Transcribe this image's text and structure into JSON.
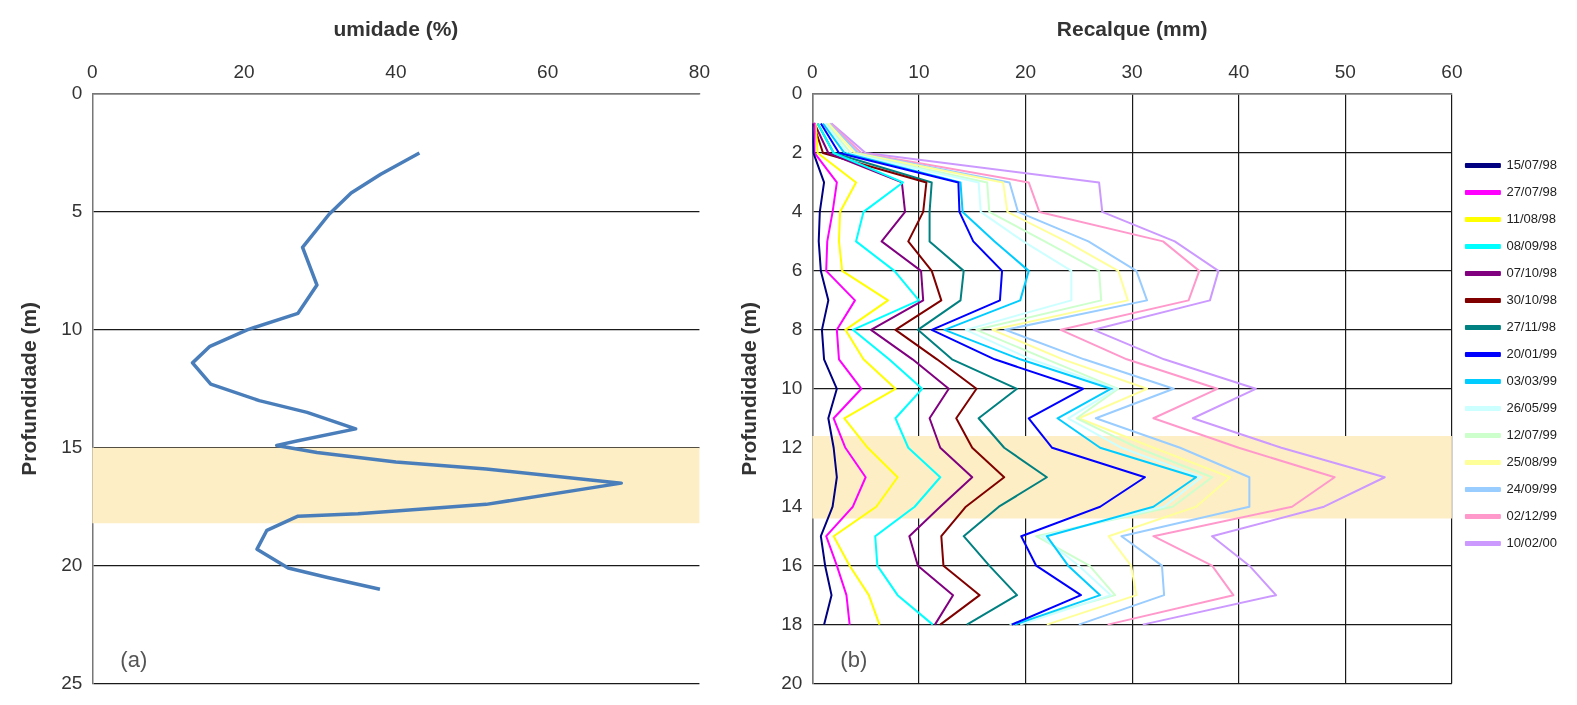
{
  "chart_data": [
    {
      "type": "line",
      "xlabel": "umidade (%)",
      "ylabel": "Profundidade (m)",
      "xlim": [
        0,
        80
      ],
      "xticks": [
        0,
        20,
        40,
        60,
        80
      ],
      "ylim": [
        25,
        0
      ],
      "yticks": [
        0,
        5,
        10,
        15,
        20,
        25
      ],
      "grid": "y",
      "legend": false,
      "marker": "none",
      "line_style": "solid",
      "annotations": [
        "(a)"
      ],
      "bands": [
        {
          "axis": "y",
          "from": 15,
          "to": 18.2,
          "color": "#fdeec5"
        }
      ],
      "series": [
        {
          "color": "#4a7ebb",
          "x": [
            43.1,
            38,
            34.1,
            31.2,
            27.7,
            29.6,
            27.1,
            20.4,
            15.5,
            13.2,
            15.6,
            22,
            28.3,
            34.7,
            27.1,
            24.3,
            29.6,
            40,
            51.9,
            69.7,
            51.9,
            35,
            27.1,
            23,
            21.7,
            25.8,
            31,
            37.9
          ],
          "values": [
            2.5,
            3.4,
            4.2,
            5.1,
            6.5,
            8.1,
            9.3,
            10,
            10.7,
            11.4,
            12.3,
            13,
            13.5,
            14.2,
            14.7,
            14.9,
            15.2,
            15.6,
            15.9,
            16.5,
            17.4,
            17.8,
            17.9,
            18.5,
            19.3,
            20.1,
            20.5,
            21
          ]
        }
      ]
    },
    {
      "type": "line",
      "xlabel": "Recalque (mm)",
      "ylabel": "Profundidade (m)",
      "xlim": [
        0,
        60
      ],
      "xticks": [
        0,
        10,
        20,
        30,
        40,
        50,
        60
      ],
      "ylim": [
        20,
        0
      ],
      "yticks": [
        0,
        2,
        4,
        6,
        8,
        10,
        12,
        14,
        16,
        18,
        20
      ],
      "grid": true,
      "legend": "right",
      "marker": "none",
      "line_style": "solid",
      "annotations": [
        "(b)"
      ],
      "bands": [
        {
          "axis": "y",
          "from": 11.6,
          "to": 14.4,
          "color": "#fdeec5"
        }
      ],
      "series": [
        {
          "name": "15/07/98",
          "color": "#000080",
          "x": [
            0,
            0.1,
            1.1,
            0.7,
            0.6,
            0.8,
            1.5,
            0.9,
            1.1,
            2.3,
            1.5,
            2.0,
            2.3,
            1.9,
            0.8,
            1.2,
            1.8,
            1.1
          ],
          "values": [
            1,
            2,
            3,
            4,
            5,
            6,
            7,
            8,
            9,
            10,
            11,
            12,
            13,
            14,
            15,
            16,
            17,
            18
          ]
        },
        {
          "name": "27/07/98",
          "color": "#ff00ff",
          "x": [
            0.2,
            0.2,
            2.3,
            1.9,
            1.4,
            1.3,
            4.0,
            2.3,
            2.5,
            4.6,
            2.0,
            3.1,
            5.0,
            3.8,
            1.3,
            2.3,
            3.2,
            3.5
          ],
          "values": [
            1,
            2,
            3,
            4,
            5,
            6,
            7,
            8,
            9,
            10,
            11,
            12,
            13,
            14,
            15,
            16,
            17,
            18
          ]
        },
        {
          "name": "11/08/98",
          "color": "#ffff00",
          "x": [
            0.3,
            0.5,
            4.1,
            2.6,
            2.5,
            2.8,
            7.1,
            3.1,
            4.8,
            7.8,
            3.0,
            5.2,
            8.0,
            6.0,
            2.0,
            3.5,
            5.3,
            6.3
          ],
          "values": [
            1,
            2,
            3,
            4,
            5,
            6,
            7,
            8,
            9,
            10,
            11,
            12,
            13,
            14,
            15,
            16,
            17,
            18
          ]
        },
        {
          "name": "08/09/98",
          "color": "#00ffff",
          "x": [
            0.5,
            2.0,
            8.5,
            4.8,
            4.1,
            7.7,
            10.0,
            3.8,
            7.2,
            10.3,
            7.8,
            9.0,
            12.0,
            9.6,
            5.9,
            6.1,
            8.0,
            11.3
          ],
          "values": [
            1,
            2,
            3,
            4,
            5,
            6,
            7,
            8,
            9,
            10,
            11,
            12,
            13,
            14,
            15,
            16,
            17,
            18
          ]
        },
        {
          "name": "07/10/98",
          "color": "#800080",
          "x": [
            0.2,
            1.5,
            8.4,
            8.7,
            6.5,
            10.2,
            10.4,
            5.5,
            9.4,
            12.8,
            11.0,
            12.0,
            15.0,
            12.0,
            9.1,
            9.9,
            13.2,
            11.5
          ],
          "values": [
            1,
            2,
            3,
            4,
            5,
            6,
            7,
            8,
            9,
            10,
            11,
            12,
            13,
            14,
            15,
            16,
            17,
            18
          ]
        },
        {
          "name": "30/10/98",
          "color": "#800000",
          "x": [
            0.1,
            1.0,
            10.7,
            10.4,
            9.0,
            11.2,
            12.1,
            7.8,
            11.7,
            15.4,
            13.5,
            15.0,
            18.0,
            14.4,
            12.1,
            12.3,
            15.7,
            12.0
          ],
          "values": [
            1,
            2,
            3,
            4,
            5,
            6,
            7,
            8,
            9,
            10,
            11,
            12,
            13,
            14,
            15,
            16,
            17,
            18
          ]
        },
        {
          "name": "27/11/98",
          "color": "#008080",
          "x": [
            0.5,
            2.0,
            11.2,
            11.0,
            11.0,
            14.2,
            13.9,
            9.9,
            13.1,
            19.2,
            15.6,
            18.0,
            22.0,
            17.5,
            14.2,
            16.6,
            19.2,
            14.5
          ],
          "values": [
            1,
            2,
            3,
            4,
            5,
            6,
            7,
            8,
            9,
            10,
            11,
            12,
            13,
            14,
            15,
            16,
            17,
            18
          ]
        },
        {
          "name": "20/01/99",
          "color": "#0000ff",
          "x": [
            0.8,
            2.5,
            13.7,
            13.8,
            15.1,
            17.8,
            17.6,
            11.2,
            17.1,
            25.4,
            20.3,
            22.5,
            31.2,
            27.0,
            19.6,
            21.0,
            25.2,
            18.7
          ],
          "values": [
            1,
            2,
            3,
            4,
            5,
            6,
            7,
            8,
            9,
            10,
            11,
            12,
            13,
            14,
            15,
            16,
            17,
            18
          ]
        },
        {
          "name": "03/03/99",
          "color": "#00ccff",
          "x": [
            1.0,
            3.0,
            13.9,
            14.1,
            17.1,
            20.3,
            19.5,
            12.4,
            19.5,
            28.0,
            23.0,
            27.0,
            36.0,
            32.0,
            22.0,
            24.0,
            27.0,
            19.0
          ],
          "values": [
            1,
            2,
            3,
            4,
            5,
            6,
            7,
            8,
            9,
            10,
            11,
            12,
            13,
            14,
            15,
            16,
            17,
            18
          ]
        },
        {
          "name": "26/05/99",
          "color": "#ccffff",
          "x": [
            1.2,
            3.3,
            15.6,
            15.8,
            19.8,
            24.3,
            24.3,
            14.4,
            20.5,
            28.5,
            24.0,
            29.0,
            36.5,
            33.0,
            21.5,
            25.0,
            28.0,
            19.5
          ],
          "values": [
            1,
            2,
            3,
            4,
            5,
            6,
            7,
            8,
            9,
            10,
            11,
            12,
            13,
            14,
            15,
            16,
            17,
            18
          ]
        },
        {
          "name": "12/07/99",
          "color": "#ccffcc",
          "x": [
            1.3,
            3.6,
            16.4,
            16.6,
            21.8,
            26.9,
            27.1,
            15.4,
            22.0,
            28.7,
            24.8,
            30.5,
            37.5,
            33.8,
            21.0,
            26.0,
            28.4,
            18.5
          ],
          "values": [
            1,
            2,
            3,
            4,
            5,
            6,
            7,
            8,
            9,
            10,
            11,
            12,
            13,
            14,
            15,
            16,
            17,
            18
          ]
        },
        {
          "name": "25/08/99",
          "color": "#ffff99",
          "x": [
            1.5,
            4.0,
            17.9,
            18.3,
            23.8,
            28.7,
            29.6,
            16.9,
            23.5,
            31.4,
            25.0,
            32.0,
            39.2,
            36.0,
            27.8,
            29.9,
            30.4,
            22.0
          ],
          "values": [
            1,
            2,
            3,
            4,
            5,
            6,
            7,
            8,
            9,
            10,
            11,
            12,
            13,
            14,
            15,
            16,
            17,
            18
          ]
        },
        {
          "name": "24/09/99",
          "color": "#99ccff",
          "x": [
            1.6,
            4.3,
            18.5,
            19.3,
            25.9,
            30.4,
            31.4,
            18.1,
            25.5,
            33.9,
            26.6,
            34.5,
            41.0,
            41.0,
            29.0,
            32.8,
            33.0,
            25.0
          ],
          "values": [
            1,
            2,
            3,
            4,
            5,
            6,
            7,
            8,
            9,
            10,
            11,
            12,
            13,
            14,
            15,
            16,
            17,
            18
          ]
        },
        {
          "name": "02/12/99",
          "color": "#ff99cc",
          "x": [
            1.7,
            4.6,
            20.3,
            21.3,
            32.9,
            36.3,
            35.3,
            23.3,
            29.5,
            38.0,
            32.0,
            40.0,
            49.0,
            45.0,
            32.0,
            37.5,
            39.5,
            27.7
          ],
          "values": [
            1,
            2,
            3,
            4,
            5,
            6,
            7,
            8,
            9,
            10,
            11,
            12,
            13,
            14,
            15,
            16,
            17,
            18
          ]
        },
        {
          "name": "10/02/00",
          "color": "#cc99ff",
          "x": [
            1.8,
            5.0,
            26.9,
            27.2,
            34.0,
            38.1,
            37.3,
            26.4,
            33.0,
            41.6,
            35.7,
            44.0,
            53.7,
            48.0,
            37.5,
            41.0,
            43.5,
            31.0
          ],
          "values": [
            1,
            2,
            3,
            4,
            5,
            6,
            7,
            8,
            9,
            10,
            11,
            12,
            13,
            14,
            15,
            16,
            17,
            18
          ]
        }
      ]
    }
  ]
}
